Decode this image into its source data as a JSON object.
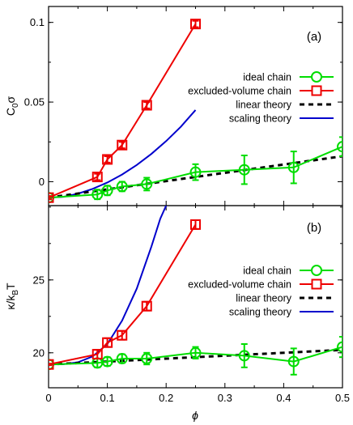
{
  "chart_data": {
    "type": "line",
    "x_label": "ϕ",
    "x_ticks": [
      "0",
      "0.1",
      "0.2",
      "0.3",
      "0.4",
      "0.5"
    ],
    "xlim": [
      0,
      0.5
    ],
    "panels": [
      {
        "tag": "(a)",
        "ylabel_main": "C",
        "ylabel_sub": "0",
        "ylabel_tail": "σ",
        "ylim": [
          -0.015,
          0.11
        ],
        "y_ticks": [
          {
            "v": 0,
            "label": "0"
          },
          {
            "v": 0.05,
            "label": "0.05"
          },
          {
            "v": 0.1,
            "label": "0.1"
          }
        ],
        "legend": [
          {
            "label": "ideal chain",
            "series": "ideal"
          },
          {
            "label": "excluded-volume chain",
            "series": "excluded"
          },
          {
            "label": "linear theory",
            "series": "linear"
          },
          {
            "label": "scaling theory",
            "series": "scaling"
          }
        ],
        "series": [
          {
            "key": "ideal",
            "name": "ideal chain",
            "color": "#00dd00",
            "marker": "circle",
            "x": [
              0,
              0.083,
              0.1,
              0.125,
              0.167,
              0.25,
              0.333,
              0.417,
              0.5
            ],
            "y": [
              -0.01,
              -0.008,
              -0.0055,
              -0.003,
              -0.0015,
              0.006,
              0.0075,
              0.009,
              0.022
            ],
            "err": [
              0.001,
              0.003,
              0.003,
              0.003,
              0.004,
              0.005,
              0.009,
              0.01,
              0.006
            ]
          },
          {
            "key": "excluded",
            "name": "excluded-volume chain",
            "color": "#ee0000",
            "marker": "square",
            "x": [
              0,
              0.083,
              0.1,
              0.125,
              0.167,
              0.25
            ],
            "y": [
              -0.01,
              0.003,
              0.014,
              0.023,
              0.048,
              0.099
            ],
            "err": [
              0.001,
              0.002,
              0.002,
              0.002,
              0.002,
              0.002
            ]
          },
          {
            "key": "linear",
            "name": "linear theory",
            "color": "#000000",
            "style": "dashed",
            "x": [
              0,
              0.5
            ],
            "y": [
              -0.01,
              0.016
            ]
          },
          {
            "key": "scaling",
            "name": "scaling theory",
            "color": "#0000cc",
            "x": [
              0,
              0.025,
              0.05,
              0.075,
              0.1,
              0.125,
              0.15,
              0.175,
              0.2,
              0.225,
              0.25
            ],
            "y": [
              -0.01,
              -0.0095,
              -0.0075,
              -0.0045,
              -0.0005,
              0.0045,
              0.0105,
              0.0175,
              0.0255,
              0.0345,
              0.045
            ]
          }
        ]
      },
      {
        "tag": "(b)",
        "ylabel_main": "κ/k",
        "ylabel_sub": "B",
        "ylabel_tail": "T",
        "ylim": [
          17.6,
          30.1
        ],
        "y_ticks": [
          {
            "v": 20,
            "label": "20"
          },
          {
            "v": 25,
            "label": "25"
          }
        ],
        "legend": [
          {
            "label": "ideal chain",
            "series": "ideal"
          },
          {
            "label": "excluded-volume chain",
            "series": "excluded"
          },
          {
            "label": "linear theory",
            "series": "linear"
          },
          {
            "label": "scaling theory",
            "series": "scaling"
          }
        ],
        "series": [
          {
            "key": "ideal",
            "name": "ideal chain",
            "color": "#00dd00",
            "marker": "circle",
            "x": [
              0,
              0.083,
              0.1,
              0.125,
              0.167,
              0.25,
              0.333,
              0.417,
              0.5
            ],
            "y": [
              19.2,
              19.3,
              19.4,
              19.6,
              19.6,
              20.0,
              19.8,
              19.4,
              20.4
            ],
            "err": [
              0.05,
              0.3,
              0.3,
              0.3,
              0.4,
              0.4,
              0.8,
              0.9,
              0.7
            ]
          },
          {
            "key": "excluded",
            "name": "excluded-volume chain",
            "color": "#ee0000",
            "marker": "square",
            "x": [
              0,
              0.083,
              0.1,
              0.125,
              0.167,
              0.25
            ],
            "y": [
              19.2,
              19.9,
              20.7,
              21.2,
              23.2,
              28.8
            ],
            "err": [
              0.05,
              0.3,
              0.3,
              0.3,
              0.3,
              0.3
            ]
          },
          {
            "key": "linear",
            "name": "linear theory",
            "color": "#000000",
            "style": "dashed",
            "x": [
              0,
              0.5
            ],
            "y": [
              19.2,
              20.2
            ]
          },
          {
            "key": "scaling",
            "name": "scaling theory",
            "color": "#0000cc",
            "x": [
              0,
              0.025,
              0.05,
              0.075,
              0.1,
              0.125,
              0.15,
              0.175,
              0.19,
              0.2
            ],
            "y": [
              19.2,
              19.22,
              19.35,
              19.75,
              20.6,
              22.2,
              24.4,
              27.3,
              29.2,
              30.1
            ]
          }
        ]
      }
    ]
  }
}
